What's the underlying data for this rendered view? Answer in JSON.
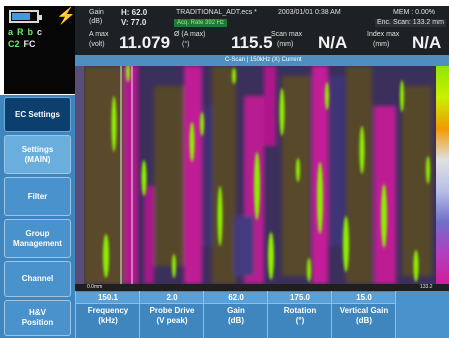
{
  "status": {
    "row1": [
      "a",
      "R",
      "b",
      "c"
    ],
    "row2": [
      "C2",
      "FC"
    ]
  },
  "header": {
    "gain_label": "Gain",
    "gain_unit": "(dB)",
    "gain_h": "H: 62.0",
    "gain_v": "V: 77.0",
    "file_name": "TRADITIONAL_ADT.ecs *",
    "acq_rate": "Acq. Rate 392 Hz",
    "datetime": "2003/01/01 0:38 AM",
    "mem": "MEM : 0.00%",
    "enc_scan": "Enc. Scan: 133.2 mm",
    "amax_label": "A max",
    "amax_unit": "(volt)",
    "amax_value": "11.079",
    "phase_label": "Ø (A max)",
    "phase_unit": "(°)",
    "phase_value": "115.5",
    "scanmax_label": "Scan max",
    "scanmax_unit": "(mm)",
    "scanmax_value": "N/A",
    "indexmax_label": "Index max",
    "indexmax_unit": "(mm)",
    "indexmax_value": "N/A"
  },
  "strip": {
    "title": "C-Scan | 150kHz (X) Current"
  },
  "menu": {
    "items": [
      {
        "label": "EC Settings"
      },
      {
        "label": "Settings (MAIN)"
      },
      {
        "label": "Filter"
      },
      {
        "label": "Group Management"
      },
      {
        "label": "Channel"
      },
      {
        "label": "H&V Position"
      }
    ]
  },
  "scan": {
    "x_start": "0.0mm",
    "x_end": "133.2"
  },
  "params": [
    {
      "value": "150.1",
      "label1": "Frequency",
      "label2": "(kHz)"
    },
    {
      "value": "2.0",
      "label1": "Probe Drive",
      "label2": "(V peak)"
    },
    {
      "value": "62.0",
      "label1": "Gain",
      "label2": "(dB)"
    },
    {
      "value": "175.0",
      "label1": "Rotation",
      "label2": "(°)"
    },
    {
      "value": "15.0",
      "label1": "Vertical Gain",
      "label2": "(dB)"
    }
  ],
  "colors": {
    "panel_blue": "#3f86bf",
    "active_button": "#0d3f6e",
    "header_dark": "#1d2024",
    "scan_green": "#8ff000",
    "scan_magenta": "#c21a93",
    "scan_purple": "#4a3a8a",
    "scan_brown": "#5e4a2a"
  }
}
